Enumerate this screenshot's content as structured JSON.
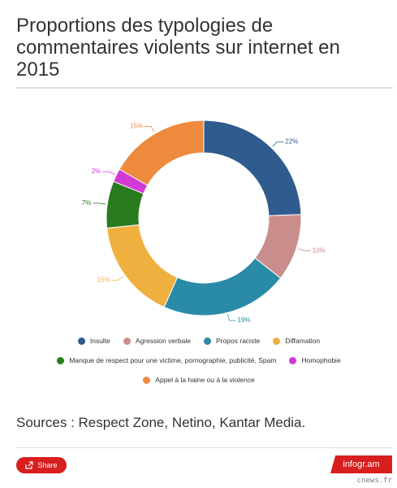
{
  "chart_data": {
    "type": "donut",
    "title": "Proportions des typologies de commentaires violents sur internet en 2015",
    "categories": [
      "Insulte",
      "Agression verbale",
      "Propos raciste",
      "Diffamation",
      "Manque de respect pour une victime, pornographie, publicité, Spam",
      "Homophobie",
      "Appel à la haine ou à la violence"
    ],
    "values": [
      22,
      10,
      19,
      15,
      7,
      2,
      15
    ],
    "value_labels": [
      "22%",
      "10%",
      "19%",
      "15%",
      "7%",
      "2%",
      "15%"
    ],
    "colors": [
      "#2f5b8e",
      "#c98e8c",
      "#2a8ba8",
      "#f0b040",
      "#2a7a1f",
      "#d23ad6",
      "#ee8a3e"
    ],
    "source": "Sources : Respect Zone, Netino, Kantar Media."
  },
  "footer": {
    "share": "Share",
    "brand": "infogr.am",
    "watermark": "cnews.fr"
  }
}
